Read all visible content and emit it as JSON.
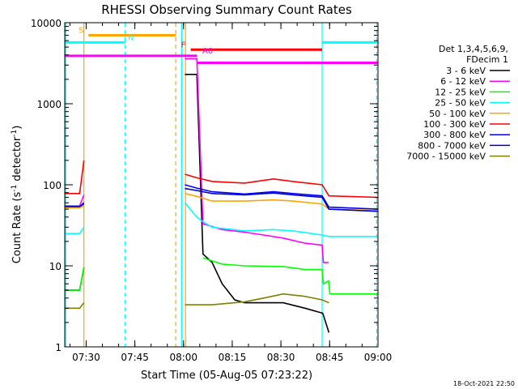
{
  "chart_data": {
    "type": "line",
    "title": "RHESSI Observing Summary Count Rates",
    "xlabel": "Start Time (05-Aug-05 07:23:22)",
    "ylabel_main": "Count Rate (s",
    "ylabel_sup1": "-1",
    "ylabel_mid": " detector",
    "ylabel_sup2": "-1",
    "ylabel_end": ")",
    "x_unit": "minutes since 07:23:22",
    "xlim": [
      0,
      96.5
    ],
    "ylim": [
      1,
      10000
    ],
    "yscale": "log",
    "x_ticks": [
      {
        "label": "07:30",
        "v": 6.6
      },
      {
        "label": "07:45",
        "v": 21.6
      },
      {
        "label": "08:00",
        "v": 36.6
      },
      {
        "label": "08:15",
        "v": 51.6
      },
      {
        "label": "08:30",
        "v": 66.6
      },
      {
        "label": "08:45",
        "v": 81.6
      },
      {
        "label": "09:00",
        "v": 96.6
      }
    ],
    "y_ticks": [
      {
        "label": "1",
        "v": 1
      },
      {
        "label": "10",
        "v": 10
      },
      {
        "label": "100",
        "v": 100
      },
      {
        "label": "1000",
        "v": 1000
      },
      {
        "label": "10000",
        "v": 10000
      }
    ],
    "legend_header": [
      "Det 1,3,4,5,6,9,",
      "FDecim 1"
    ],
    "timestamp": "18-Oct-2021 22:50",
    "series": [
      {
        "name": "3 - 6 keV",
        "color": "#000000",
        "segments": [
          [
            [
              0,
              5
            ],
            [
              4.6,
              5
            ],
            [
              5.9,
              9.5
            ]
          ],
          [
            [
              37,
              2300
            ],
            [
              40.7,
              2300
            ],
            [
              42.6,
              14
            ],
            [
              45.4,
              11
            ],
            [
              48.5,
              6
            ],
            [
              52.4,
              3.8
            ],
            [
              55.4,
              3.5
            ],
            [
              67.3,
              3.5
            ],
            [
              74,
              3
            ],
            [
              79.5,
              2.6
            ],
            [
              81.4,
              1.5
            ]
          ]
        ]
      },
      {
        "name": "6 - 12 keV",
        "color": "#ff00ff",
        "segments": [
          [
            [
              0,
              55
            ],
            [
              4.6,
              55
            ],
            [
              5.9,
              75
            ]
          ],
          [
            [
              37,
              3600
            ],
            [
              40.7,
              3600
            ],
            [
              42.6,
              33
            ],
            [
              48.5,
              28
            ],
            [
              55.4,
              26
            ],
            [
              61.3,
              24
            ],
            [
              67.3,
              22
            ],
            [
              74,
              19
            ],
            [
              79.3,
              18
            ],
            [
              79.7,
              11
            ],
            [
              81.3,
              11
            ]
          ]
        ]
      },
      {
        "name": "12 - 25 keV",
        "color": "#00ff00",
        "segments": [
          [
            [
              0,
              5
            ],
            [
              4.6,
              5
            ],
            [
              5.9,
              9.5
            ]
          ],
          [
            [
              42.6,
              12.5
            ],
            [
              48.5,
              10.5
            ],
            [
              55.4,
              10
            ],
            [
              67.3,
              9.8
            ],
            [
              74,
              9
            ],
            [
              79.3,
              9
            ],
            [
              79.7,
              6
            ],
            [
              81.3,
              6.5
            ],
            [
              81.7,
              4.5
            ],
            [
              96.5,
              4.5
            ]
          ]
        ]
      },
      {
        "name": "25 - 50 keV",
        "color": "#00ffff",
        "segments": [
          [
            [
              0,
              25
            ],
            [
              4.6,
              25
            ],
            [
              5.9,
              30
            ]
          ],
          [
            [
              37,
              60
            ],
            [
              40.7,
              40
            ],
            [
              42.6,
              35
            ],
            [
              45.4,
              30
            ],
            [
              55.4,
              27
            ],
            [
              64.3,
              28
            ],
            [
              70.3,
              27
            ],
            [
              79.3,
              24
            ],
            [
              81.4,
              23
            ],
            [
              96.5,
              23
            ]
          ]
        ]
      },
      {
        "name": "50 - 100 keV",
        "color": "#ffa500",
        "segments": [
          [
            [
              0,
              52
            ],
            [
              4.6,
              52
            ],
            [
              5.9,
              55
            ]
          ],
          [
            [
              37,
              78
            ],
            [
              40.7,
              72
            ],
            [
              45.4,
              63
            ],
            [
              55.4,
              63
            ],
            [
              64.3,
              65
            ],
            [
              70.3,
              63
            ],
            [
              79.3,
              58
            ],
            [
              81.4,
              50
            ],
            [
              96.5,
              48
            ]
          ]
        ]
      },
      {
        "name": "100 - 300 keV",
        "color": "#ff0000",
        "segments": [
          [
            [
              0,
              78
            ],
            [
              4.6,
              78
            ],
            [
              5.9,
              200
            ]
          ],
          [
            [
              37,
              135
            ],
            [
              40.7,
              122
            ],
            [
              45.4,
              110
            ],
            [
              55.4,
              105
            ],
            [
              64.3,
              118
            ],
            [
              70.3,
              110
            ],
            [
              79.3,
              100
            ],
            [
              81.4,
              73
            ],
            [
              96.5,
              70
            ]
          ]
        ]
      },
      {
        "name": "300 - 800 keV",
        "color": "#0000ff",
        "segments": [
          [
            [
              0,
              54
            ],
            [
              4.6,
              54
            ],
            [
              5.9,
              60
            ]
          ],
          [
            [
              37,
              100
            ],
            [
              40.7,
              91
            ],
            [
              45.4,
              82
            ],
            [
              55.4,
              77
            ],
            [
              64.3,
              82
            ],
            [
              70.3,
              78
            ],
            [
              79.3,
              73
            ],
            [
              81.4,
              53
            ],
            [
              96.5,
              50
            ]
          ]
        ]
      },
      {
        "name": "800 - 7000 keV",
        "color": "#0000c8",
        "segments": [
          [
            [
              0,
              54
            ],
            [
              4.6,
              54
            ],
            [
              5.9,
              58
            ]
          ],
          [
            [
              37,
              90
            ],
            [
              40.7,
              85
            ],
            [
              45.4,
              78
            ],
            [
              55.4,
              75
            ],
            [
              64.3,
              79
            ],
            [
              70.3,
              75
            ],
            [
              79.3,
              70
            ],
            [
              81.4,
              50
            ],
            [
              96.5,
              47
            ]
          ]
        ]
      },
      {
        "name": "7000 - 15000 keV",
        "color": "#808000",
        "segments": [
          [
            [
              0,
              3
            ],
            [
              4.6,
              3
            ],
            [
              5.9,
              3.5
            ]
          ],
          [
            [
              37,
              3.3
            ],
            [
              45.4,
              3.3
            ],
            [
              55.4,
              3.6
            ],
            [
              61.3,
              4
            ],
            [
              67.3,
              4.5
            ],
            [
              74,
              4.2
            ],
            [
              79.3,
              3.8
            ],
            [
              81.4,
              3.5
            ]
          ]
        ]
      }
    ],
    "flag_bars": [
      {
        "label": "S",
        "color": "#ffa500",
        "x": [
          7.3,
          34.2
        ],
        "y": 7000
      },
      {
        "label": "N",
        "color": "#00ffff",
        "x": [
          0,
          18.6
        ],
        "y": 5700
      },
      {
        "label": "F",
        "color": "#ff0000",
        "x": [
          38.8,
          79.3
        ],
        "y": 4650
      },
      {
        "label": "A0",
        "color": "#ff00ff",
        "x": [
          0,
          40.7
        ],
        "y": 3900
      },
      {
        "label": "",
        "color": "#ff00ff",
        "x": [
          40.7,
          96.5
        ],
        "y": 3200
      },
      {
        "label": "",
        "color": "#00ffff",
        "x": [
          79.3,
          96.5
        ],
        "y": 5700
      }
    ],
    "vlines": [
      {
        "x": 0.3,
        "color": "#00ffff",
        "dash": false
      },
      {
        "x": 5.9,
        "color": "#ffa500",
        "dash": false
      },
      {
        "x": 18.6,
        "color": "#00ffff",
        "dash": true
      },
      {
        "x": 34.2,
        "color": "#ffa500",
        "dash": true
      },
      {
        "x": 36.0,
        "color": "#00ffff",
        "dash": false
      },
      {
        "x": 37.2,
        "color": "#ffa500",
        "dash": false
      },
      {
        "x": 79.3,
        "color": "#00ffff",
        "dash": false
      },
      {
        "x": 96.1,
        "color": "#00ffff",
        "dash": true
      }
    ]
  }
}
